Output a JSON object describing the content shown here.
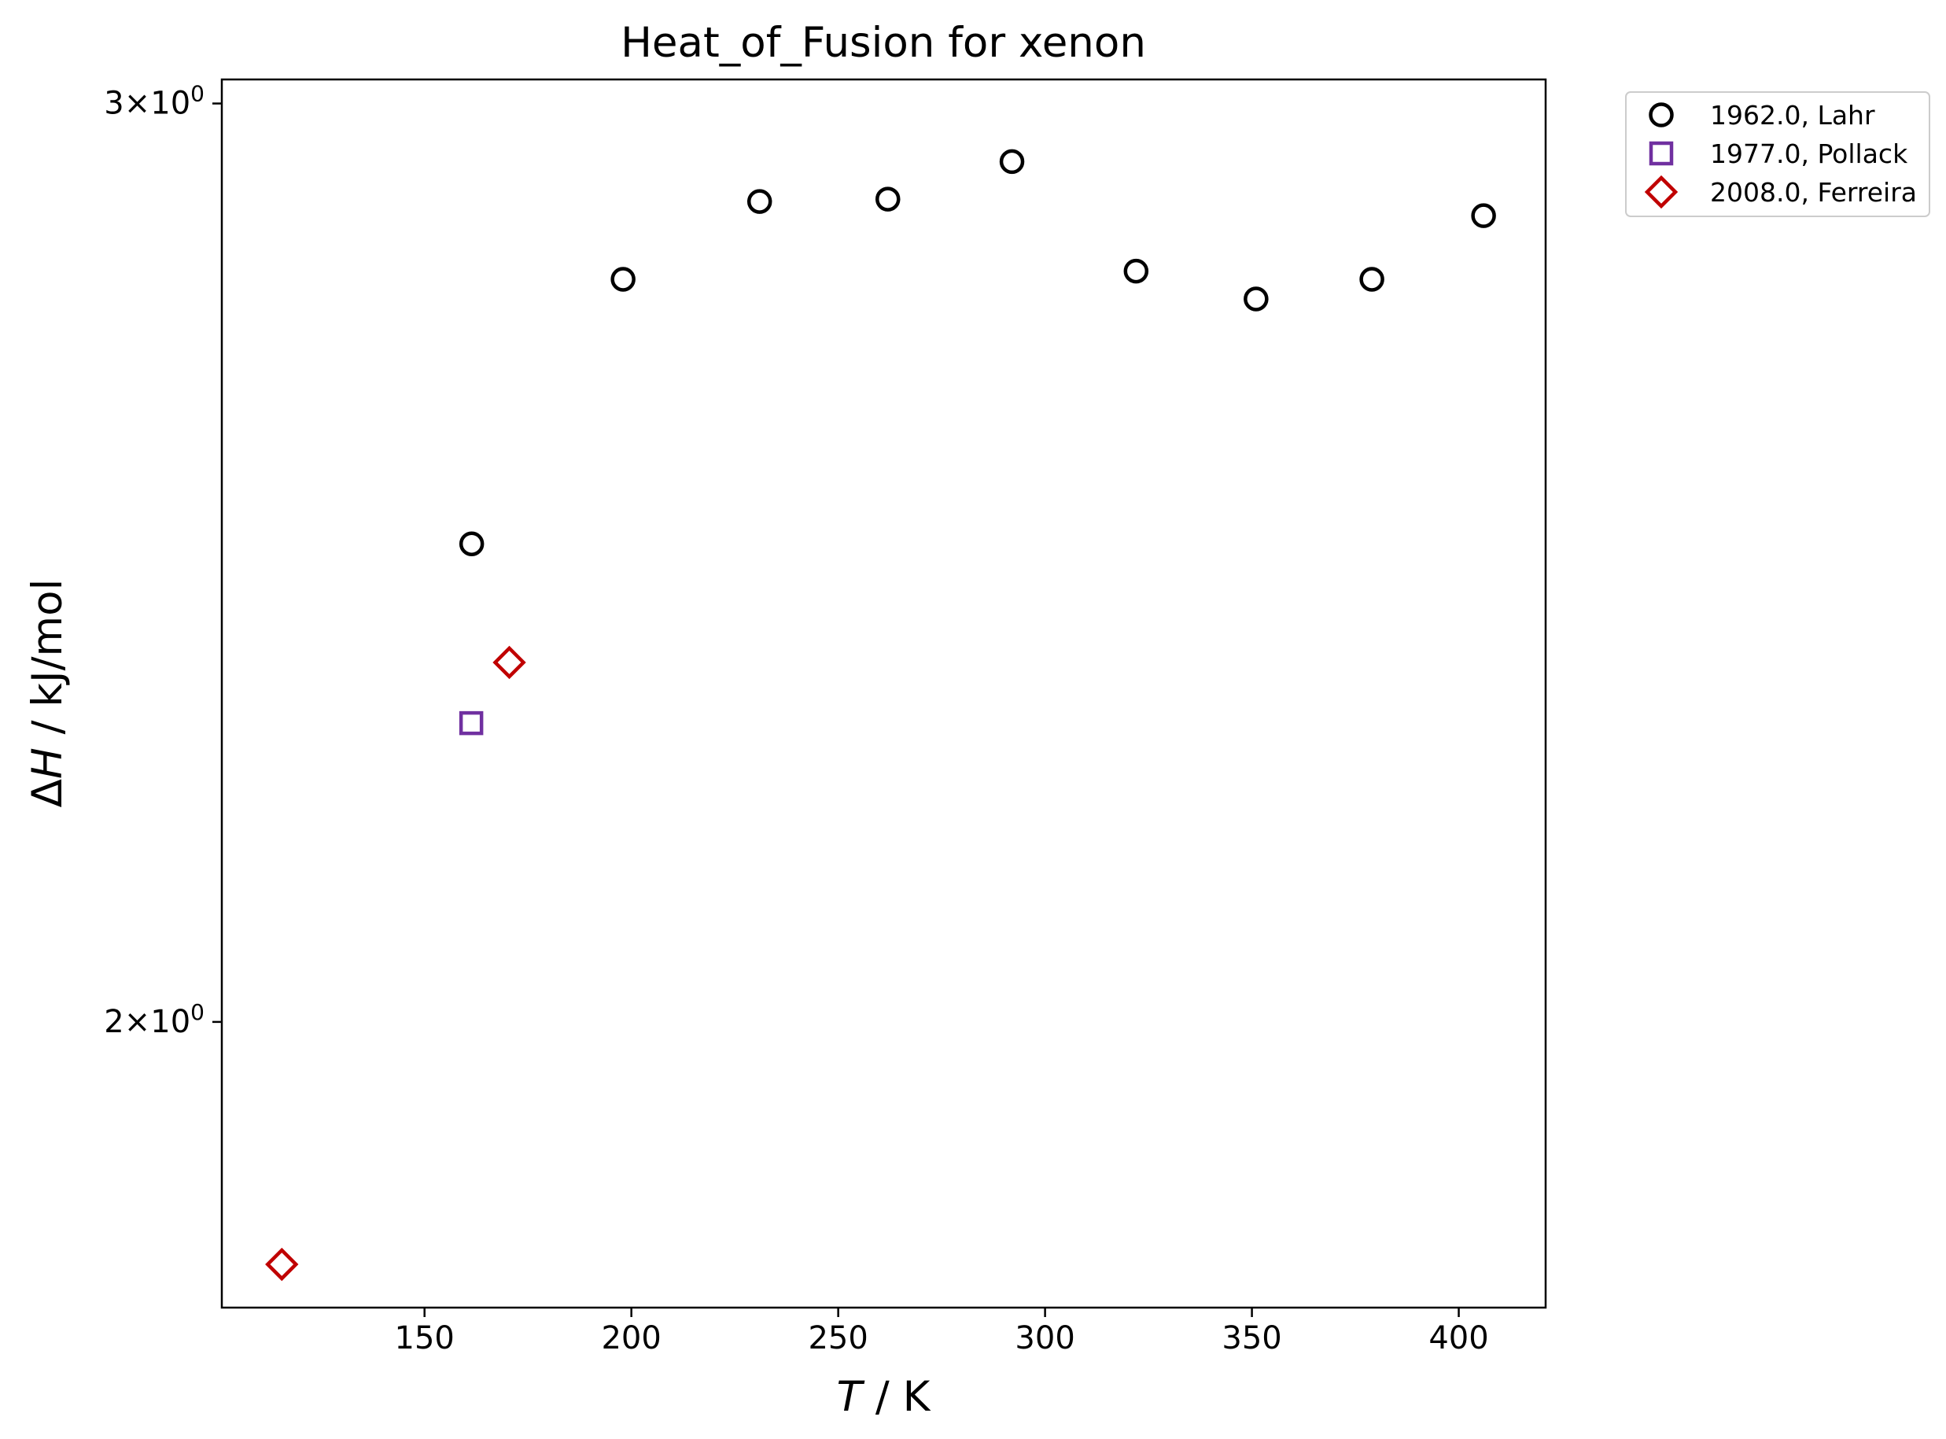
{
  "chart_data": {
    "type": "scatter",
    "title": "Heat_of_Fusion for xenon",
    "xlabel": {
      "symbol": "T",
      "unit": " / K"
    },
    "ylabel": {
      "symbol": "ΔH",
      "symbol_prefix": "Δ",
      "symbol_var": "H",
      "unit": " / kJ/mol"
    },
    "x_scale": "linear",
    "y_scale": "log",
    "xlim": [
      101,
      421
    ],
    "ylim": [
      1.763,
      3.032
    ],
    "x_ticks": [
      {
        "value": 150,
        "label": "150"
      },
      {
        "value": 200,
        "label": "200"
      },
      {
        "value": 250,
        "label": "250"
      },
      {
        "value": 300,
        "label": "300"
      },
      {
        "value": 350,
        "label": "350"
      },
      {
        "value": 400,
        "label": "400"
      }
    ],
    "y_ticks": [
      {
        "value": 2,
        "base": "2",
        "exp": "0"
      },
      {
        "value": 3,
        "base": "3",
        "exp": "0"
      }
    ],
    "grid": false,
    "legend_position": "outside top-right",
    "series": [
      {
        "name": "1962.0, Lahr",
        "marker": "circle",
        "color": "#000000",
        "points": [
          {
            "x": 161.4,
            "y": 2.47
          },
          {
            "x": 198.0,
            "y": 2.776
          },
          {
            "x": 231.0,
            "y": 2.873
          },
          {
            "x": 262.0,
            "y": 2.876
          },
          {
            "x": 292.0,
            "y": 2.924
          },
          {
            "x": 322.0,
            "y": 2.786
          },
          {
            "x": 351.0,
            "y": 2.752
          },
          {
            "x": 379.0,
            "y": 2.776
          },
          {
            "x": 406.0,
            "y": 2.855
          }
        ]
      },
      {
        "name": "1977.0, Pollack",
        "marker": "square",
        "color": "#7030a0",
        "points": [
          {
            "x": 161.3,
            "y": 2.282
          }
        ]
      },
      {
        "name": "2008.0, Ferreira",
        "marker": "diamond",
        "color": "#c00000",
        "points": [
          {
            "x": 115.5,
            "y": 1.797
          },
          {
            "x": 170.5,
            "y": 2.344
          }
        ]
      }
    ]
  }
}
